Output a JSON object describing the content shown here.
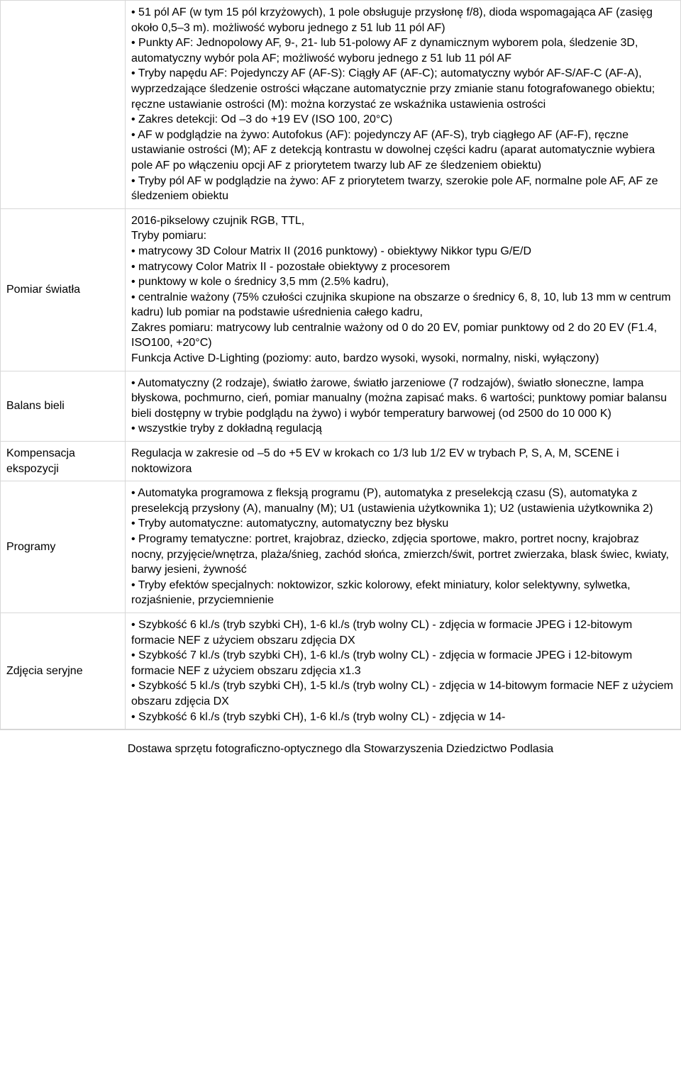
{
  "rows": [
    {
      "label": "",
      "lines": [
        "• 51 pól AF (w tym 15 pól krzyżowych), 1 pole obsługuje przysłonę f/8), dioda wspomagająca AF (zasięg około 0,5–3 m). możliwość wyboru jednego z 51 lub 11 pól AF)",
        "• Punkty AF: Jednopolowy AF, 9-, 21- lub 51-polowy AF z dynamicznym wyborem pola, śledzenie 3D, automatyczny wybór pola AF; możliwość wyboru jednego z 51 lub 11 pól AF",
        "• Tryby napędu AF: Pojedynczy AF (AF-S): Ciągły AF (AF-C); automatyczny wybór AF-S/AF-C (AF-A), wyprzedzające śledzenie ostrości włączane automatycznie przy zmianie stanu fotografowanego obiektu; ręczne ustawianie ostrości (M): można korzystać ze wskaźnika ustawienia ostrości",
        "• Zakres detekcji: Od –3 do +19 EV (ISO 100, 20°C)",
        "• AF w podglądzie na żywo: Autofokus (AF): pojedynczy AF (AF-S), tryb ciągłego AF (AF-F), ręczne ustawianie ostrości (M); AF z detekcją kontrastu w dowolnej części kadru (aparat automatycznie wybiera pole AF po włączeniu opcji AF z priorytetem twarzy lub AF ze śledzeniem obiektu)",
        "• Tryby pól AF w podglądzie na żywo: AF z priorytetem twarzy, szerokie pole AF, normalne pole AF, AF ze śledzeniem obiektu"
      ]
    },
    {
      "label": "Pomiar światła",
      "lines": [
        "2016-pikselowy czujnik RGB, TTL,",
        "Tryby pomiaru:",
        "• matrycowy 3D Colour Matrix II (2016 punktowy) - obiektywy Nikkor typu G/E/D",
        "• matrycowy Color Matrix II - pozostałe obiektywy z procesorem",
        "• punktowy w kole o średnicy 3,5 mm (2.5% kadru),",
        "• centralnie ważony (75% czułości czujnika skupione na obszarze o średnicy 6, 8, 10, lub 13 mm w centrum kadru) lub pomiar na podstawie uśrednienia całego kadru,",
        "Zakres pomiaru: matrycowy lub centralnie ważony od 0 do 20 EV, pomiar punktowy od 2 do 20 EV (F1.4, ISO100, +20°C)",
        "Funkcja Active D-Lighting (poziomy: auto, bardzo wysoki, wysoki, normalny, niski, wyłączony)"
      ]
    },
    {
      "label": "Balans bieli",
      "lines": [
        "• Automatyczny (2 rodzaje), światło żarowe, światło jarzeniowe (7 rodzajów), światło słoneczne, lampa błyskowa, pochmurno, cień, pomiar manualny (można zapisać maks. 6 wartości; punktowy pomiar balansu bieli dostępny w trybie podglądu na żywo) i wybór temperatury barwowej (od 2500 do 10 000 K)",
        "• wszystkie tryby z dokładną regulacją"
      ]
    },
    {
      "label": "Kompensacja ekspozycji",
      "lines": [
        "Regulacja w zakresie od –5 do +5 EV w krokach co 1/3 lub 1/2 EV w trybach P, S, A, M, SCENE i noktowizora"
      ]
    },
    {
      "label": "Programy",
      "lines": [
        "• Automatyka programowa z fleksją programu (P), automatyka z preselekcją czasu (S), automatyka z preselekcją przysłony (A), manualny (M); U1 (ustawienia użytkownika 1); U2 (ustawienia użytkownika 2)",
        "• Tryby automatyczne: automatyczny, automatyczny bez błysku",
        "• Programy tematyczne: portret, krajobraz, dziecko, zdjęcia sportowe, makro, portret nocny, krajobraz nocny, przyjęcie/wnętrza, plaża/śnieg, zachód słońca, zmierzch/świt, portret zwierzaka, blask świec, kwiaty, barwy jesieni, żywność",
        "• Tryby efektów specjalnych: noktowizor, szkic kolorowy, efekt miniatury, kolor selektywny, sylwetka, rozjaśnienie, przyciemnienie"
      ]
    },
    {
      "label": "Zdjęcia seryjne",
      "lines": [
        "• Szybkość 6 kl./s (tryb szybki CH), 1-6 kl./s (tryb wolny CL) - zdjęcia w formacie JPEG i 12-bitowym formacie NEF z użyciem obszaru zdjęcia DX",
        "• Szybkość 7 kl./s (tryb szybki CH), 1-6 kl./s (tryb wolny CL) - zdjęcia w formacie JPEG i 12-bitowym formacie NEF z użyciem obszaru zdjęcia x1.3",
        "• Szybkość 5 kl./s (tryb szybki CH), 1-5 kl./s (tryb wolny CL) - zdjęcia w 14-bitowym formacie NEF z użyciem obszaru zdjęcia DX",
        "• Szybkość 6 kl./s (tryb szybki CH), 1-6 kl./s (tryb wolny CL) - zdjęcia w 14-"
      ]
    }
  ],
  "footer": "Dostawa sprzętu fotograficzno-optycznego dla Stowarzyszenia Dziedzictwo Podlasia"
}
